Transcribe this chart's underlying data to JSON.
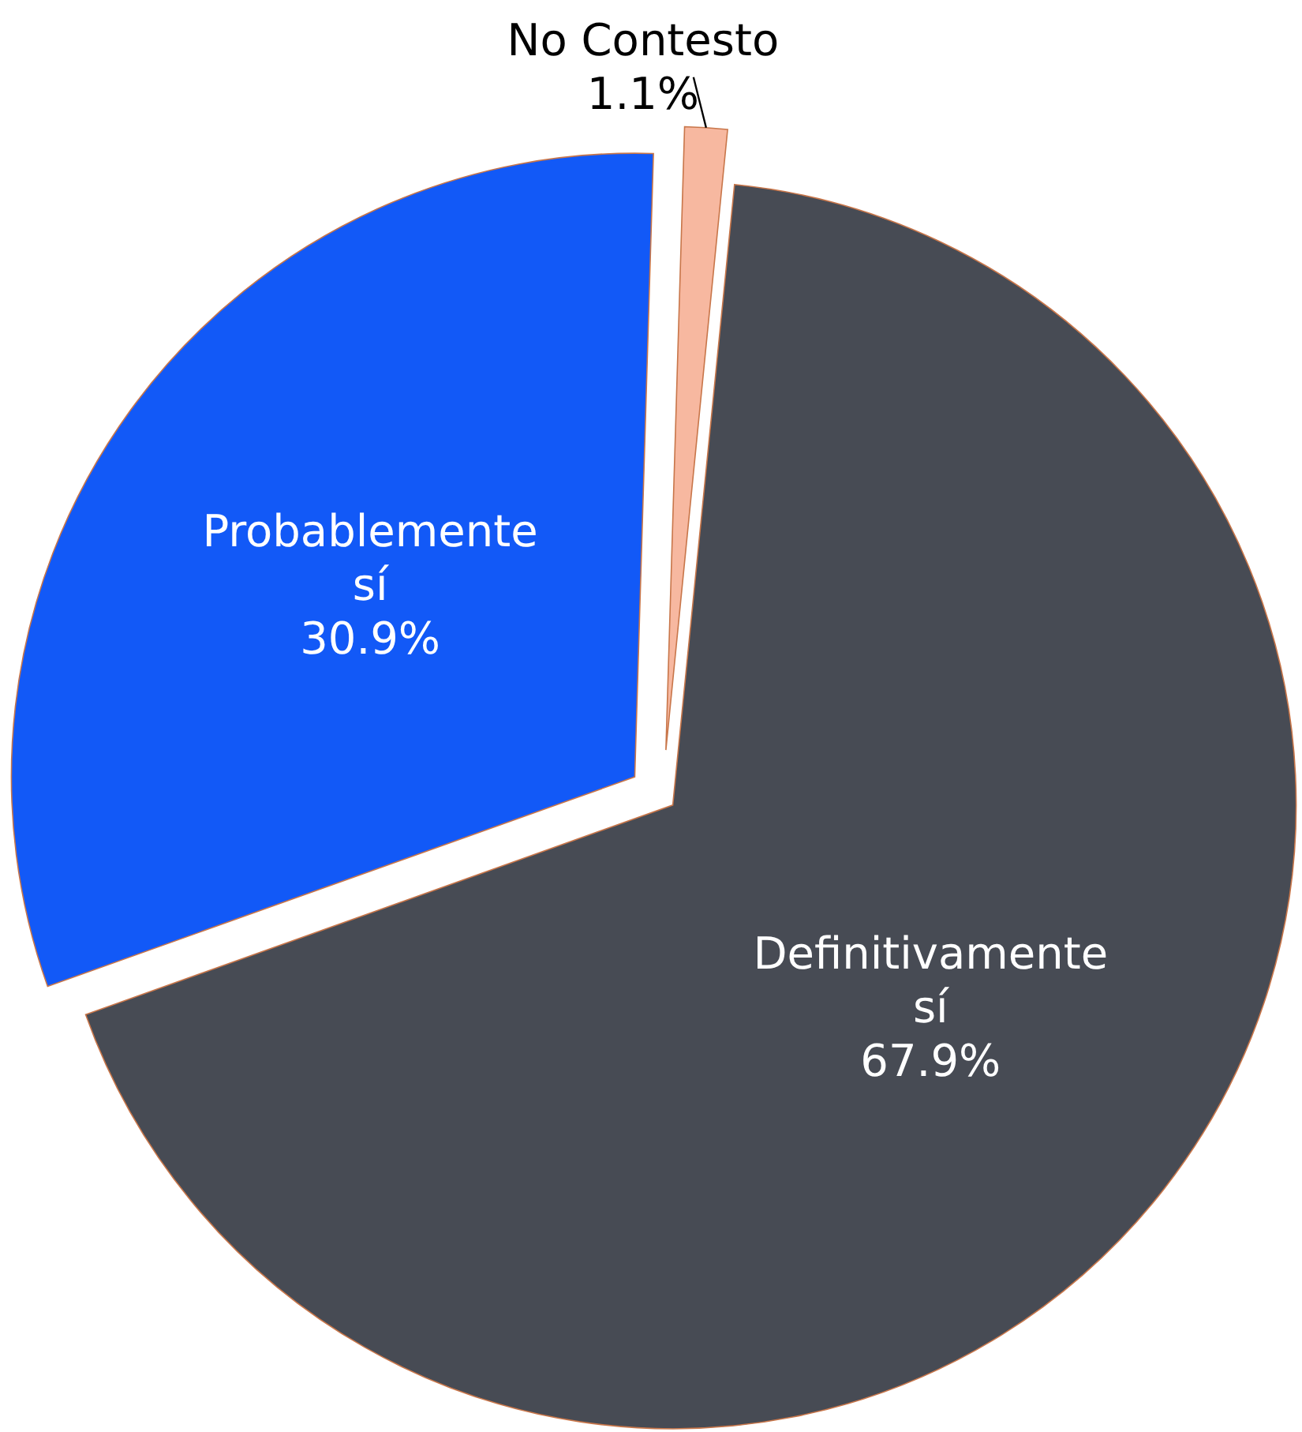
{
  "chart_data": {
    "type": "pie",
    "categories": [
      "No Contesto",
      "Definitivamente sí",
      "Probablemente sí"
    ],
    "values": [
      1.1,
      67.9,
      30.9
    ],
    "colors": [
      "#f7b8a0",
      "#474b54",
      "#1259f7"
    ],
    "value_labels": [
      "1.1%",
      "67.9%",
      "30.9%"
    ]
  }
}
